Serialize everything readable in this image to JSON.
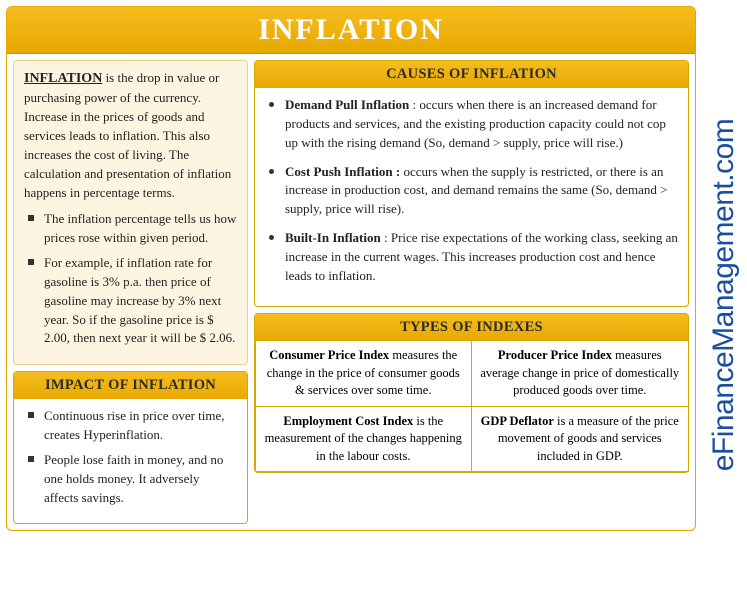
{
  "colors": {
    "header_gradient_top": "#f5bd1f",
    "header_gradient_bottom": "#e8a800",
    "border": "#d9a800",
    "definition_bg": "#fdf5e2",
    "definition_border": "#e8cf8a",
    "title_text": "#ffffff",
    "body_text": "#222222",
    "watermark": "#1b4ea0"
  },
  "title": "INFLATION",
  "definition": {
    "term": "INFLATION",
    "text": " is the drop in value or purchasing power of the currency. Increase in the prices of goods and services leads to inflation. This also increases the cost of living. The calculation and presentation of inflation happens in percentage terms.",
    "bullets": [
      "The inflation percentage tells us how prices rose within given period.",
      "For example, if inflation rate for gasoline is 3% p.a. then price of gasoline may increase by 3% next year. So if the gasoline price is $ 2.00, then next year it will be $ 2.06."
    ]
  },
  "impact": {
    "header": "IMPACT OF INFLATION",
    "bullets": [
      "Continuous rise in price over time, creates Hyperinflation.",
      "People lose faith in money, and no one holds money. It adversely affects savings."
    ]
  },
  "causes": {
    "header": "CAUSES OF INFLATION",
    "items": [
      {
        "name": "Demand Pull Inflation",
        "sep": " : ",
        "desc": "occurs when there is an increased demand for products and services, and the existing production capacity could not cop up with the rising demand (So, demand > supply, price will rise.)"
      },
      {
        "name": "Cost Push Inflation :",
        "sep": " ",
        "desc": "occurs when the supply is restricted, or there is an increase in production cost, and demand remains the same (So, demand > supply, price will rise)."
      },
      {
        "name": "Built-In Inflation",
        "sep": " : ",
        "desc": "Price rise expectations of the working class, seeking an increase in the current wages. This increases production cost and hence leads to inflation."
      }
    ]
  },
  "indexes": {
    "header": "TYPES OF INDEXES",
    "items": [
      {
        "name": "Consumer Price Index",
        "desc": " measures the change in the price of consumer goods & services over some time."
      },
      {
        "name": "Producer Price Index",
        "desc": " measures average change in price of domestically produced goods over time."
      },
      {
        "name": "Employment Cost Index",
        "desc": " is the measurement of the changes happening in the labour costs."
      },
      {
        "name": "GDP Deflator",
        "desc": " is a measure of the price movement of goods and services included in GDP."
      }
    ]
  },
  "watermark": "eFinanceManagement.com"
}
